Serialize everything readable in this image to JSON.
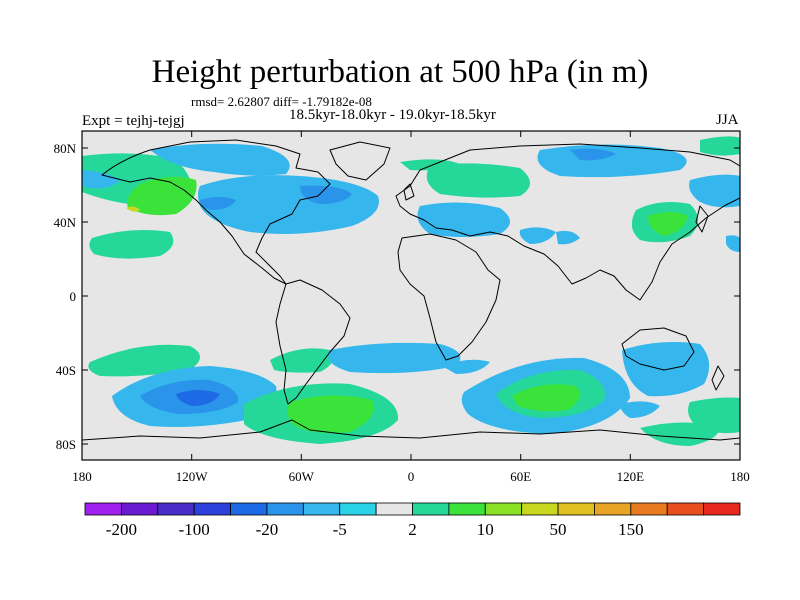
{
  "title": "Height perturbation at 500 hPa (in m)",
  "stats": "rmsd= 2.62807 diff= -1.79182e-08",
  "period": "18.5kyr-18.0kyr - 19.0kyr-18.5kyr",
  "experiment": "Expt = tejhj-tejgj",
  "season": "JJA",
  "lat_labels": [
    "80N",
    "40N",
    "0",
    "40S",
    "80S"
  ],
  "lon_labels": [
    "180",
    "120W",
    "60W",
    "0",
    "60E",
    "120E",
    "180"
  ],
  "colorbar": {
    "colors": [
      "#a020f0",
      "#6a1ad0",
      "#4a2cc8",
      "#2d40dc",
      "#1e6ae6",
      "#2a94ea",
      "#35b6ec",
      "#2ad2e8",
      "#e6e6e6",
      "#25d89a",
      "#3ae23a",
      "#8ae024",
      "#c8d81e",
      "#e0c020",
      "#e8a424",
      "#e87a20",
      "#e84e1e",
      "#e82a1e"
    ],
    "labels": [
      "-200",
      "-100",
      "-20",
      "-5",
      "2",
      "10",
      "50",
      "150"
    ]
  },
  "colors": {
    "background": "#e6e6e6",
    "neg_light": "#35b6ec",
    "neg_mid": "#2a94ea",
    "neg_dark": "#1e6ae6",
    "pos_light": "#25d89a",
    "pos_mid": "#3ae23a",
    "pos_peak": "#c8d81e"
  }
}
